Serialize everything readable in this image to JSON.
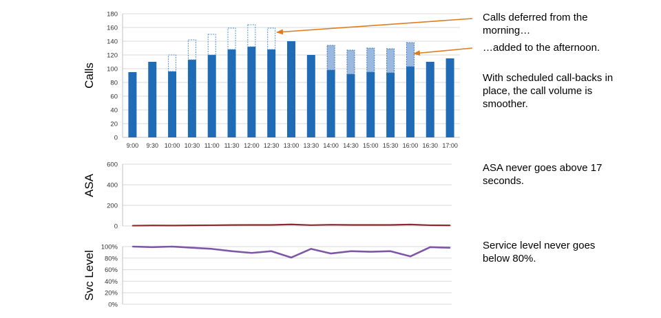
{
  "chart_data": [
    {
      "type": "bar",
      "ylabel": "Calls",
      "ylim": [
        0,
        180
      ],
      "yticks": [
        0,
        20,
        40,
        60,
        80,
        100,
        120,
        140,
        160,
        180
      ],
      "grid": true,
      "categories": [
        "9:00",
        "9:30",
        "10:00",
        "10:30",
        "11:00",
        "11:30",
        "12:00",
        "12:30",
        "13:00",
        "13:30",
        "14:00",
        "14:30",
        "15:00",
        "15:30",
        "16:00",
        "16:30",
        "17:00"
      ],
      "series": [
        {
          "role": "actual calls (solid)",
          "color": "#1f6bb5",
          "values": [
            95,
            110,
            96,
            113,
            120,
            128,
            132,
            128,
            140,
            120,
            98,
            92,
            95,
            94,
            103,
            110,
            115
          ]
        },
        {
          "role": "added to afternoon (shaded)",
          "color": "#9bb8de",
          "values": [
            0,
            0,
            0,
            0,
            0,
            0,
            0,
            0,
            0,
            0,
            36,
            35,
            35,
            35,
            35,
            0,
            0
          ]
        },
        {
          "role": "deferred from morning (dashed outline)",
          "color": "#4a8fd4",
          "values": [
            0,
            0,
            24,
            29,
            30,
            31,
            32,
            31,
            0,
            0,
            0,
            0,
            0,
            0,
            0,
            0,
            0
          ]
        }
      ],
      "annotations": [
        {
          "text": "Calls deferred from the morning…",
          "arrow_color": "#e07b1f"
        },
        {
          "text": "…added to the afternoon.",
          "arrow_color": "#e07b1f"
        },
        {
          "text": "With scheduled call-backs in place, the call volume is smoother."
        }
      ]
    },
    {
      "type": "line",
      "ylabel": "ASA",
      "ylim": [
        0,
        600
      ],
      "yticks": [
        0,
        200,
        400,
        600
      ],
      "grid": true,
      "series": [
        {
          "color": "#8b2a2a",
          "values": [
            3,
            5,
            4,
            6,
            7,
            9,
            10,
            10,
            15,
            8,
            12,
            10,
            10,
            10,
            14,
            7,
            6
          ]
        }
      ],
      "annotation": "ASA never goes above 17 seconds."
    },
    {
      "type": "line",
      "ylabel": "Svc Level",
      "ylim": [
        0,
        100
      ],
      "yticks": [
        "0%",
        "20%",
        "40%",
        "60%",
        "80%",
        "100%"
      ],
      "grid": true,
      "series": [
        {
          "color": "#7f55a8",
          "values": [
            100,
            99,
            100,
            98,
            96,
            92,
            89,
            92,
            81,
            96,
            88,
            92,
            91,
            92,
            83,
            99,
            98
          ]
        }
      ],
      "annotation": "Service level never goes below 80%."
    }
  ]
}
